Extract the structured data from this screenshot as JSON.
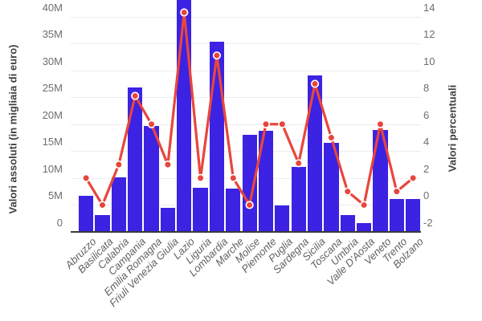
{
  "chart_data": {
    "type": "combo-bar-line",
    "title": "",
    "categories": [
      "Abruzzo",
      "Basilicata",
      "Calabria",
      "Campania",
      "Emilia Romagna",
      "Friuli Venezia Giulia",
      "Lazio",
      "Liguria",
      "Lombardia",
      "Marche",
      "Molise",
      "Piemonte",
      "Puglia",
      "Sardegna",
      "Sicilia",
      "Toscana",
      "Umbria",
      "Valle D'Aosta",
      "Veneto",
      "Trento",
      "Bolzano"
    ],
    "series": [
      {
        "name": "Valori assoluti",
        "type": "bar",
        "axis": "left",
        "unit": "millions of euro (thousands scale)",
        "values": [
          6.7,
          3.2,
          10.1,
          26.8,
          19.6,
          4.4,
          43.5,
          8.2,
          35.3,
          8.1,
          18.1,
          18.8,
          4.9,
          12.1,
          29.0,
          16.5,
          3.1,
          1.6,
          19.0,
          6.1,
          6.1
        ]
      },
      {
        "name": "Valori percentuali",
        "type": "line",
        "axis": "right",
        "unit": "percent",
        "values": [
          2.0,
          0.0,
          3.0,
          8.1,
          6.0,
          3.0,
          14.3,
          2.0,
          11.1,
          2.0,
          0.0,
          6.0,
          6.0,
          3.1,
          9.0,
          5.0,
          1.0,
          0.0,
          6.0,
          1.0,
          2.0
        ]
      }
    ],
    "left_axis": {
      "title": "Valori assoluti (in migliaia di euro)",
      "ticks": [
        "0",
        "5M",
        "10M",
        "15M",
        "20M",
        "25M",
        "30M",
        "35M",
        "40M"
      ],
      "tick_values": [
        0,
        5,
        10,
        15,
        20,
        25,
        30,
        35,
        40
      ],
      "range_visible": [
        0,
        43.3
      ]
    },
    "right_axis": {
      "title": "Valori percentuali",
      "ticks": [
        "-2",
        "0",
        "2",
        "4",
        "6",
        "8",
        "10",
        "12",
        "14"
      ],
      "tick_values": [
        -2,
        0,
        2,
        4,
        6,
        8,
        10,
        12,
        14
      ],
      "range_visible": [
        -2,
        15.2
      ]
    },
    "grid": true,
    "legend": "none",
    "colors": {
      "bar": "#3C22E2",
      "line": "#E8463C",
      "marker_ring": "#FFFFFF",
      "gridline": "#EDEDED",
      "axis_line": "#3B3B3B",
      "tick_label": "#6E6E6E",
      "x_label": "#616161",
      "axis_title": "#3F3F3F"
    }
  }
}
